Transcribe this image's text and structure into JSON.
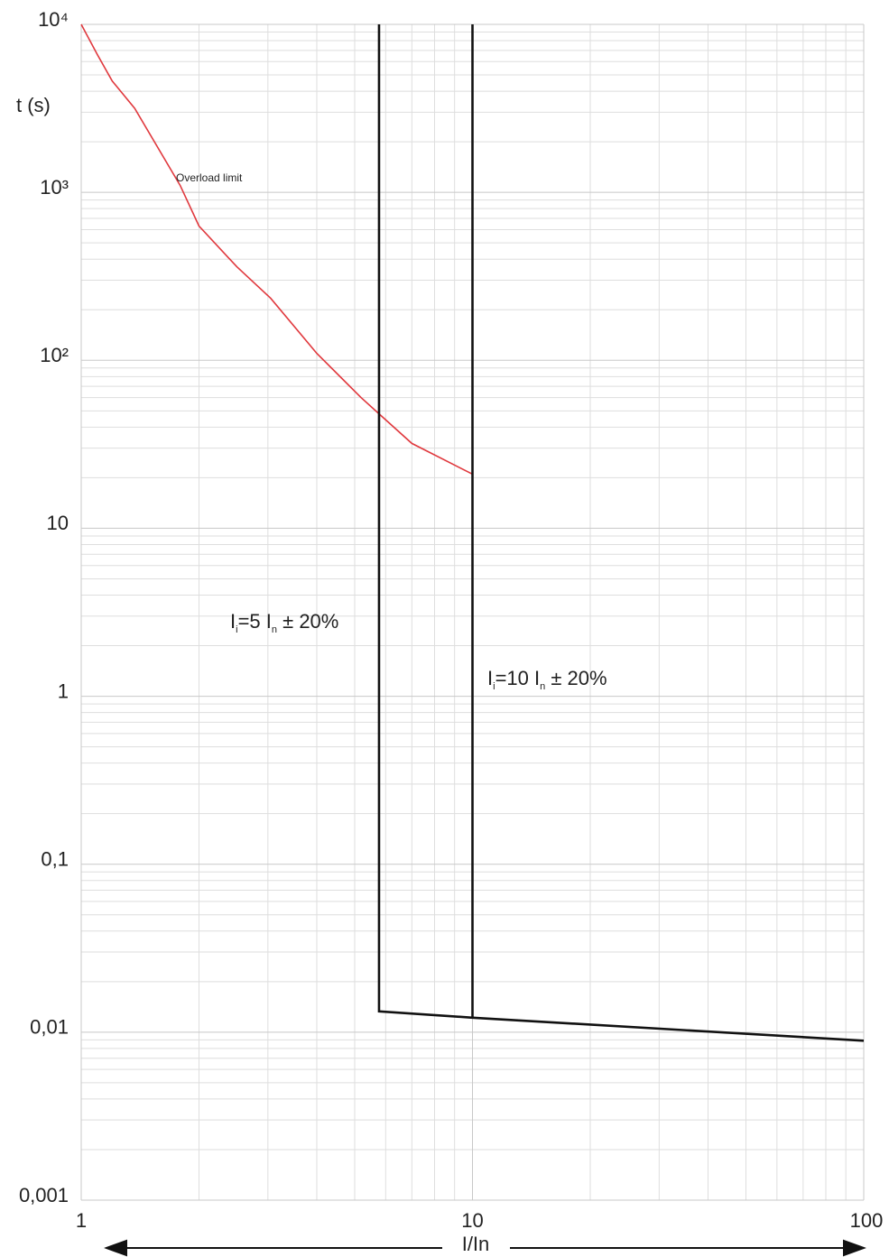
{
  "chart_data": {
    "type": "line",
    "y_label": "t (s)",
    "x_label": "I/In",
    "xscale": "log",
    "yscale": "log",
    "grid": true,
    "xlim": [
      1,
      100
    ],
    "xticks": [
      1,
      10,
      100
    ],
    "ylim": [
      0.001,
      10000
    ],
    "yticks": [
      {
        "value": 10000,
        "label": "10⁴"
      },
      {
        "value": 1000,
        "label": "10³"
      },
      {
        "value": 100,
        "label": "10²"
      },
      10,
      1,
      {
        "value": 0.1,
        "label": "0,1"
      },
      {
        "value": 0.01,
        "label": "0,01"
      },
      {
        "value": 0.001,
        "label": "0,001"
      }
    ],
    "series": [
      {
        "name": "Overload limit",
        "color": "#e0393e",
        "x": [
          1,
          1.1,
          1.2,
          1.37,
          1.79,
          2,
          2.5,
          3.05,
          4,
          5.19,
          5.77,
          7,
          10
        ],
        "values": [
          10000,
          6600,
          4600,
          3160,
          1100,
          630,
          360,
          234,
          110,
          60,
          48,
          32,
          21
        ]
      },
      {
        "color": "#111111",
        "x": [
          5.77,
          5.77,
          10,
          100
        ],
        "values": [
          10000,
          0.0133,
          0.0122,
          0.0089
        ]
      },
      {
        "color": "#111111",
        "x": [
          10,
          10
        ],
        "values": [
          10000,
          0.0122
        ]
      }
    ],
    "annotations": [
      {
        "text": [
          "I",
          "i",
          "=5 I",
          "n",
          " ± 20%"
        ]
      },
      {
        "text": [
          "I",
          "i",
          "=10 I",
          "n",
          " ± 20%"
        ]
      }
    ]
  }
}
